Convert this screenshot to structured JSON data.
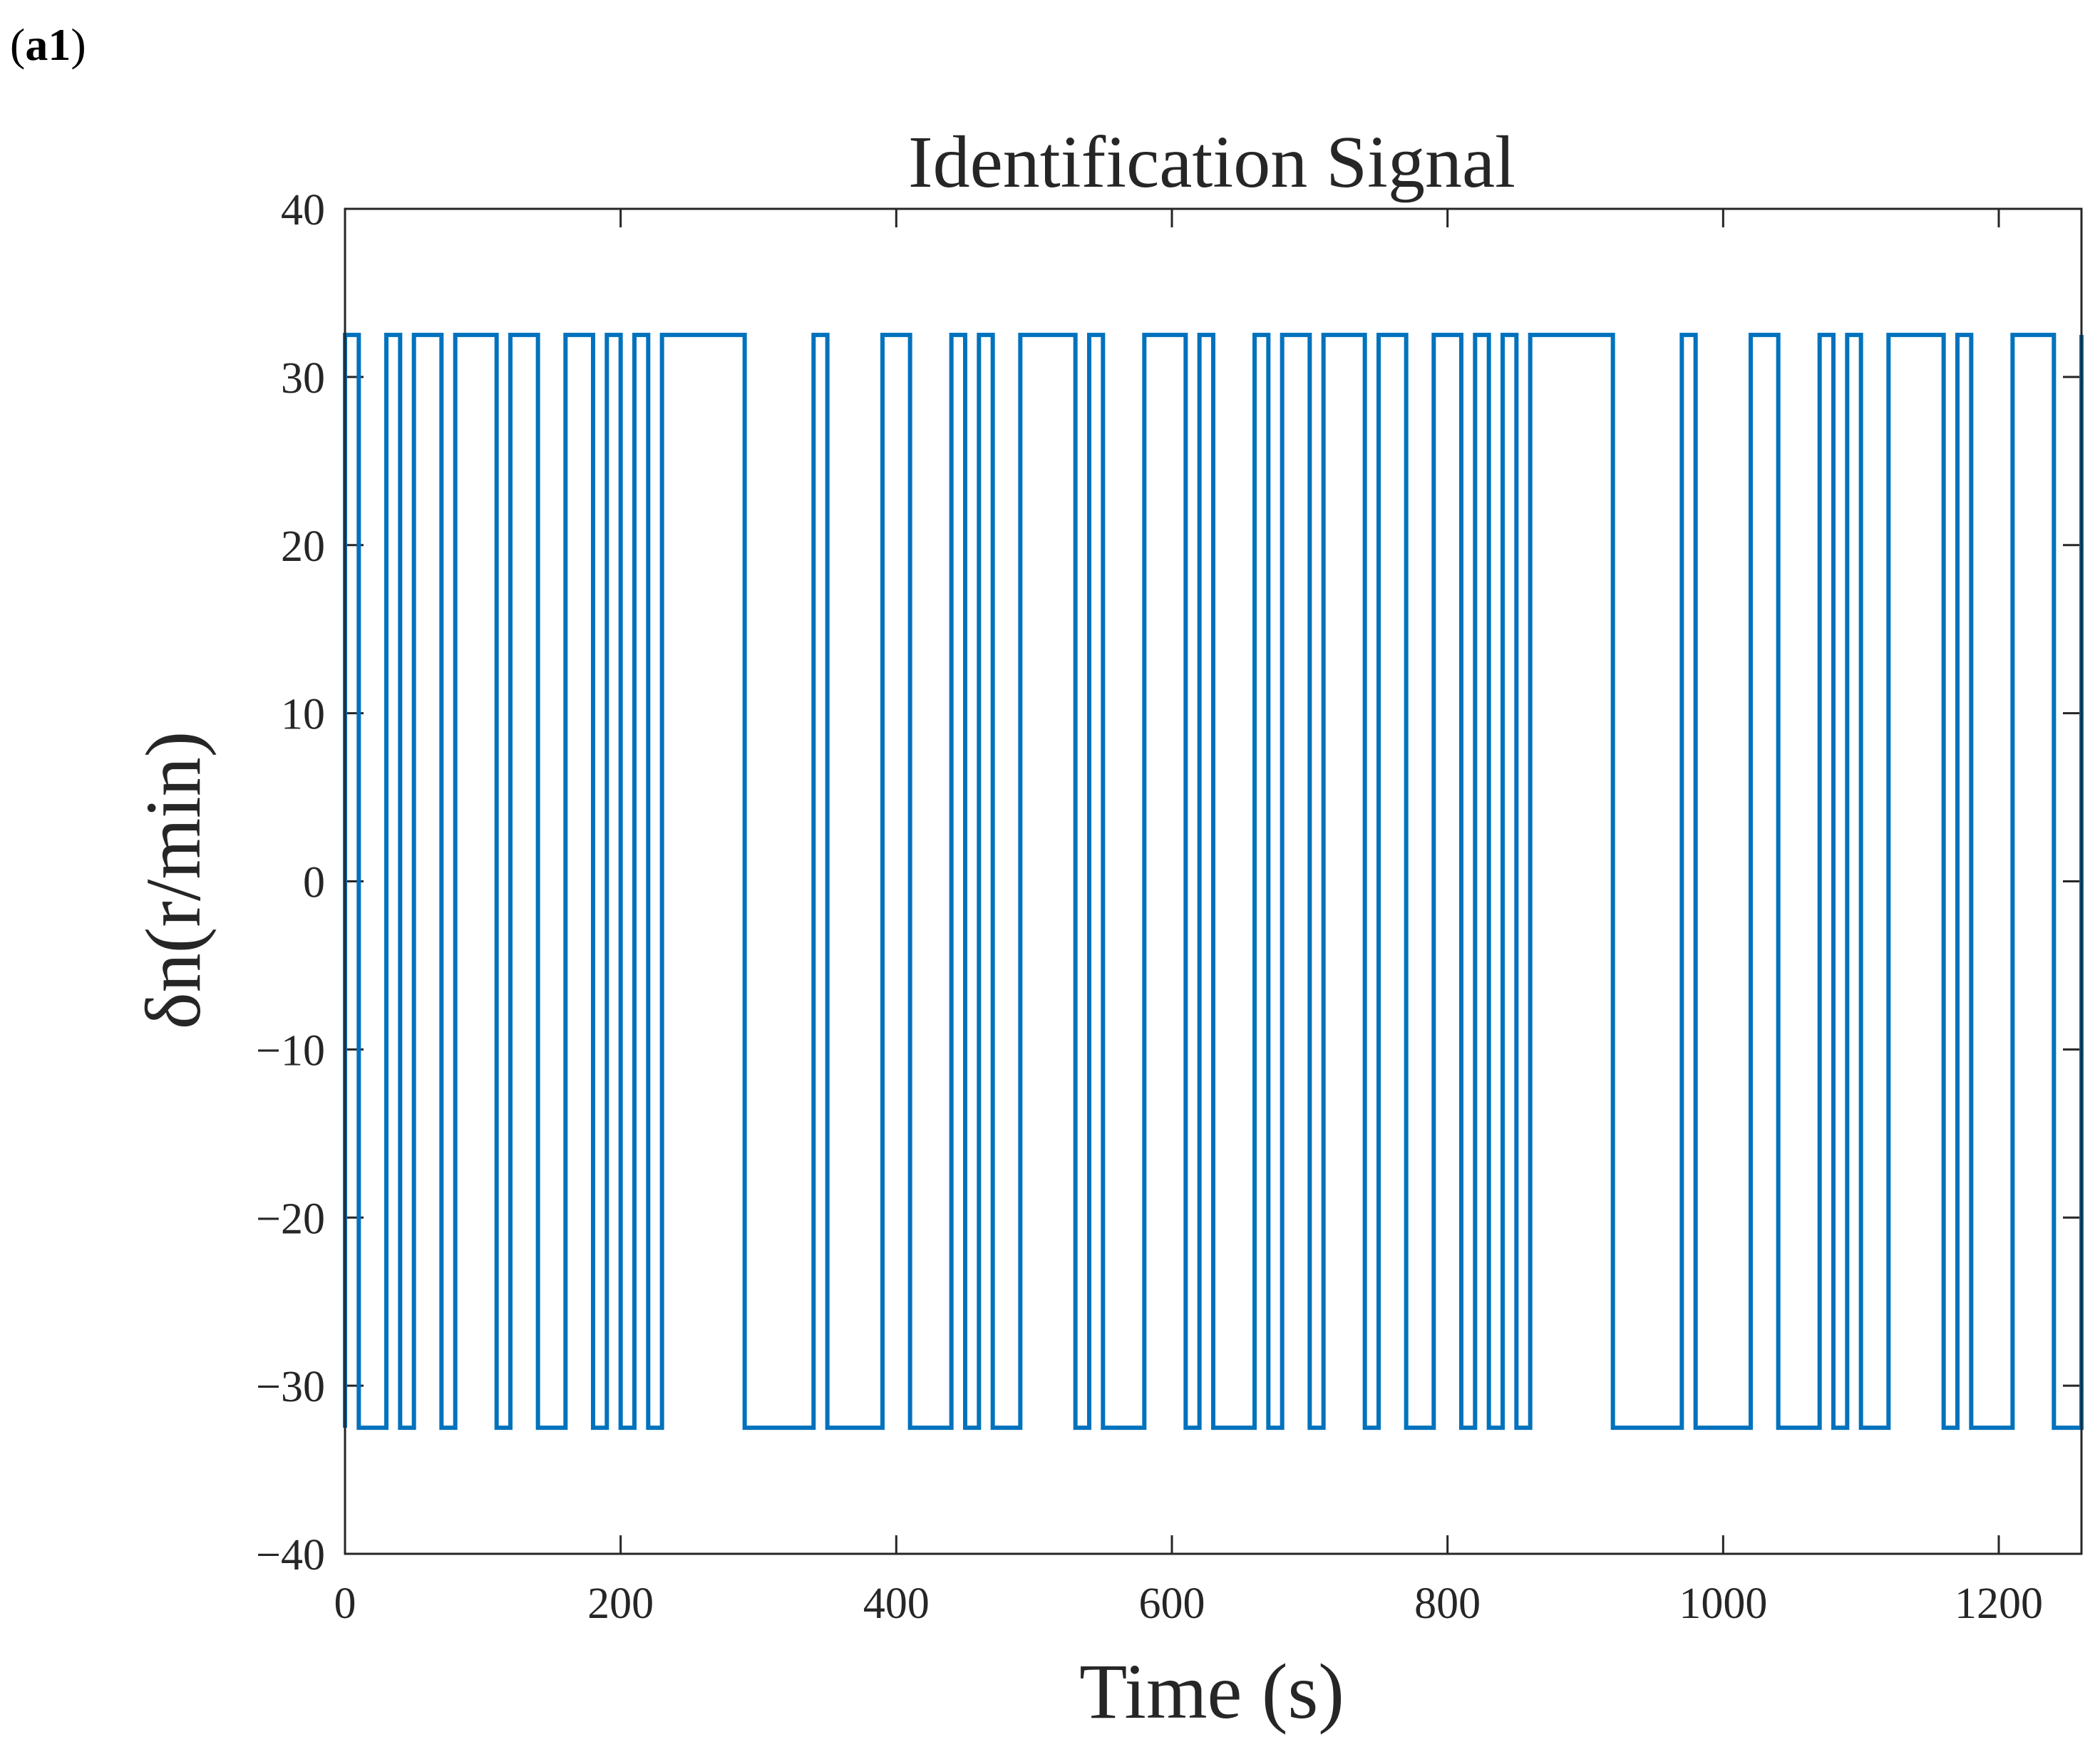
{
  "panel_label": {
    "open": "(",
    "bold": "a1",
    "close": ")"
  },
  "colors": {
    "series": "#0072BD",
    "axis": "#262626",
    "background": "#ffffff"
  },
  "chart_data": {
    "type": "line",
    "title": "Identification Signal",
    "xlabel": "Time (s)",
    "ylabel": "δn(r/min)",
    "xlim": [
      0,
      1260
    ],
    "ylim": [
      -40,
      40
    ],
    "xticks": [
      0,
      200,
      400,
      600,
      800,
      1000,
      1200
    ],
    "xtick_labels": [
      "0",
      "200",
      "400",
      "600",
      "800",
      "1000",
      "1200"
    ],
    "yticks": [
      -40,
      -30,
      -20,
      -10,
      0,
      10,
      20,
      30,
      40
    ],
    "ytick_labels": [
      "−40",
      "−30",
      "−20",
      "−10",
      "0",
      "10",
      "20",
      "30",
      "40"
    ],
    "grid": false,
    "legend": "none",
    "series": [
      {
        "step": "post",
        "amplitude": 32.5,
        "x": [
          0,
          10,
          30,
          40,
          50,
          70,
          80,
          110,
          120,
          140,
          160,
          180,
          190,
          200,
          210,
          220,
          230,
          290,
          340,
          350,
          390,
          410,
          440,
          450,
          460,
          470,
          490,
          530,
          540,
          550,
          580,
          610,
          620,
          630,
          660,
          670,
          680,
          700,
          710,
          740,
          750,
          770,
          790,
          810,
          820,
          830,
          840,
          850,
          860,
          920,
          970,
          980,
          1020,
          1040,
          1070,
          1080,
          1090,
          1100,
          1120,
          1160,
          1170,
          1180,
          1210,
          1240,
          1260
        ],
        "y": [
          32.5,
          -32.5,
          32.5,
          -32.5,
          32.5,
          -32.5,
          32.5,
          -32.5,
          32.5,
          -32.5,
          32.5,
          -32.5,
          32.5,
          -32.5,
          32.5,
          -32.5,
          32.5,
          -32.5,
          32.5,
          -32.5,
          32.5,
          -32.5,
          32.5,
          -32.5,
          32.5,
          -32.5,
          32.5,
          -32.5,
          32.5,
          -32.5,
          32.5,
          -32.5,
          32.5,
          -32.5,
          32.5,
          -32.5,
          32.5,
          -32.5,
          32.5,
          -32.5,
          32.5,
          -32.5,
          32.5,
          -32.5,
          32.5,
          -32.5,
          32.5,
          -32.5,
          32.5,
          -32.5,
          32.5,
          -32.5,
          32.5,
          -32.5,
          32.5,
          -32.5,
          32.5,
          -32.5,
          32.5,
          -32.5,
          32.5,
          -32.5,
          32.5,
          -32.5,
          32.5
        ]
      }
    ]
  }
}
